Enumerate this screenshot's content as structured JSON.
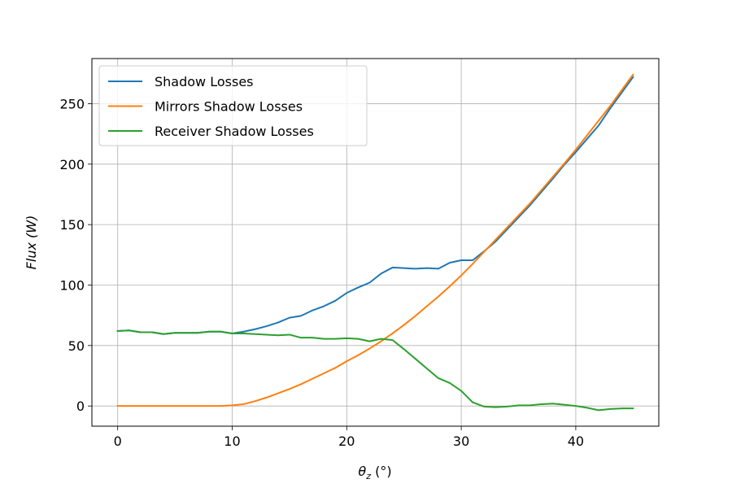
{
  "chart_data": {
    "type": "line",
    "xlabel": "θz (°)",
    "xlabel_main": "θ",
    "xlabel_sub": "z",
    "xlabel_unit": " (°)",
    "ylabel": "Flux (W)",
    "xlim": [
      -2.25,
      47.25
    ],
    "ylim": [
      -16.7,
      287.3
    ],
    "xticks": [
      0,
      10,
      20,
      30,
      40
    ],
    "yticks": [
      0,
      50,
      100,
      150,
      200,
      250
    ],
    "grid": true,
    "legend_position": "upper-left",
    "x": [
      0,
      1,
      2,
      3,
      4,
      5,
      6,
      7,
      8,
      9,
      10,
      11,
      12,
      13,
      14,
      15,
      16,
      17,
      18,
      19,
      20,
      21,
      22,
      23,
      24,
      25,
      26,
      27,
      28,
      29,
      30,
      31,
      32,
      33,
      34,
      35,
      36,
      37,
      38,
      39,
      40,
      41,
      42,
      43,
      44,
      45
    ],
    "series": [
      {
        "name": "Shadow Losses",
        "color": "#1f77b4",
        "values": [
          62,
          62.5,
          61,
          61,
          59.5,
          60.5,
          60.5,
          60.5,
          61.5,
          61.5,
          60,
          61.5,
          63.5,
          66,
          69,
          73,
          74.5,
          79,
          82.5,
          87,
          93.5,
          98,
          102,
          109.5,
          114.5,
          114,
          113.5,
          114,
          113.5,
          118.5,
          120.5,
          120.5,
          128,
          136,
          146,
          156,
          166,
          177,
          188,
          199.5,
          210,
          221,
          232,
          246,
          259,
          272
        ]
      },
      {
        "name": "Mirrors Shadow Losses",
        "color": "#ff7f0e",
        "values": [
          0,
          0,
          0,
          0,
          0,
          0,
          0,
          0,
          0,
          0,
          0.5,
          1.5,
          4,
          7,
          10.5,
          14,
          18,
          22.5,
          27,
          31.5,
          37,
          42,
          47.5,
          53.5,
          60,
          67,
          74.5,
          82.5,
          90.5,
          99,
          108,
          117.5,
          127.5,
          137.5,
          147.5,
          157.5,
          167.5,
          178.5,
          189.5,
          200.5,
          212,
          224,
          236,
          248,
          261,
          274
        ]
      },
      {
        "name": "Receiver Shadow Losses",
        "color": "#2ca02c",
        "values": [
          62,
          62.5,
          61,
          61,
          59.5,
          60.5,
          60.5,
          60.5,
          61.5,
          61.5,
          60,
          60,
          59.5,
          59,
          58.5,
          59,
          56.5,
          56.5,
          55.5,
          55.5,
          56,
          55.5,
          53.5,
          55.5,
          54.5,
          47,
          39,
          31,
          23,
          19,
          12.5,
          3,
          -0.5,
          -1,
          -0.5,
          0.5,
          0.5,
          1.5,
          2,
          1,
          0,
          -1.5,
          -3.5,
          -2.5,
          -2,
          -2
        ]
      }
    ]
  }
}
